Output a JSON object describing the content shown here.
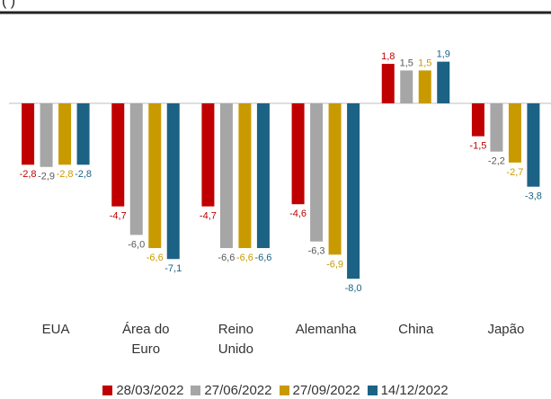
{
  "chart_data": {
    "type": "bar",
    "subtitle": "(      )",
    "categories": [
      "EUA",
      "Área do Euro",
      "Reino Unido",
      "Alemanha",
      "China",
      "Japão"
    ],
    "series": [
      {
        "name": "28/03/2022",
        "color": "#c00000",
        "values": [
          -2.8,
          -4.7,
          -4.7,
          -4.6,
          1.8,
          -1.5
        ],
        "value_labels": [
          "-2,8",
          "-4,7",
          "-4,7",
          "-4,6",
          "1,8",
          "-1,5"
        ]
      },
      {
        "name": "27/06/2022",
        "color": "#a6a6a6",
        "values": [
          -2.9,
          -6.0,
          -6.6,
          -6.3,
          1.5,
          -2.2
        ],
        "value_labels": [
          "-2,9",
          "-6,0",
          "-6,6",
          "-6,3",
          "1,5",
          "-2,2"
        ]
      },
      {
        "name": "27/09/2022",
        "color": "#c99a00",
        "values": [
          -2.8,
          -6.6,
          -6.6,
          -6.9,
          1.5,
          -2.7
        ],
        "value_labels": [
          "-2,8",
          "-6,6",
          "-6,6",
          "-6,9",
          "1,5",
          "-2,7"
        ]
      },
      {
        "name": "14/12/2022",
        "color": "#1c6285",
        "values": [
          -2.8,
          -7.1,
          -6.6,
          -8.0,
          1.9,
          -3.8
        ],
        "value_labels": [
          "-2,8",
          "-7,1",
          "-6,6",
          "-8,0",
          "1,9",
          "-3,8"
        ]
      }
    ],
    "ylim": [
      -9,
      3.5
    ]
  }
}
